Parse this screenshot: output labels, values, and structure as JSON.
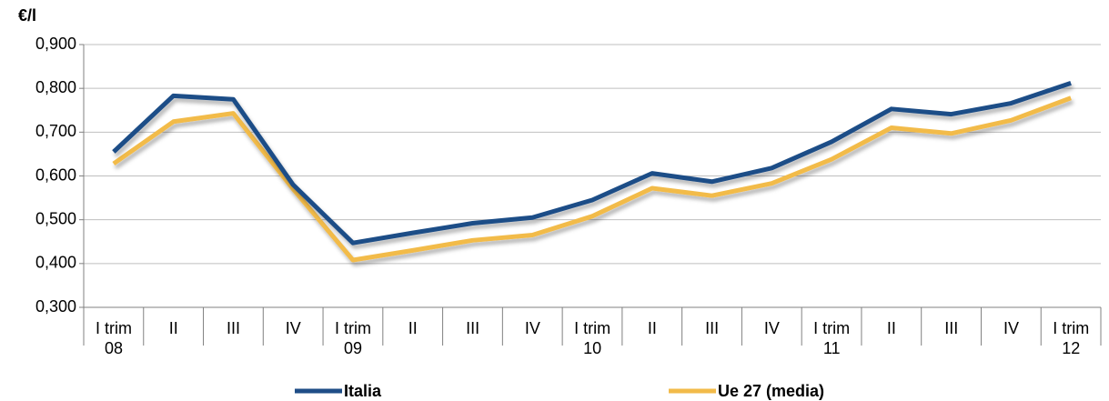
{
  "chart_data": {
    "type": "line",
    "y_label": "€/l",
    "categories": [
      "I trim\n08",
      "II",
      "III",
      "IV",
      "I trim\n09",
      "II",
      "III",
      "IV",
      "I trim\n10",
      "II",
      "III",
      "IV",
      "I trim\n11",
      "II",
      "III",
      "IV",
      "I trim\n12"
    ],
    "series": [
      {
        "name": "Italia",
        "color": "#1f4e87",
        "values": [
          0.655,
          0.783,
          0.775,
          0.58,
          0.447,
          0.47,
          0.492,
          0.505,
          0.545,
          0.606,
          0.587,
          0.618,
          0.678,
          0.753,
          0.741,
          0.766,
          0.812
        ]
      },
      {
        "name": "Ue 27 (media)",
        "color": "#f2bb4a",
        "values": [
          0.628,
          0.724,
          0.743,
          0.57,
          0.408,
          0.43,
          0.453,
          0.465,
          0.508,
          0.572,
          0.555,
          0.583,
          0.638,
          0.71,
          0.697,
          0.727,
          0.778
        ]
      }
    ],
    "ylim": [
      0.3,
      0.9
    ],
    "yticks": [
      {
        "value": 0.3,
        "label": "0,300"
      },
      {
        "value": 0.4,
        "label": "0,400"
      },
      {
        "value": 0.5,
        "label": "0,500"
      },
      {
        "value": 0.6,
        "label": "0,600"
      },
      {
        "value": 0.7,
        "label": "0,700"
      },
      {
        "value": 0.8,
        "label": "0,800"
      },
      {
        "value": 0.9,
        "label": "0,900"
      }
    ],
    "grid": true
  }
}
